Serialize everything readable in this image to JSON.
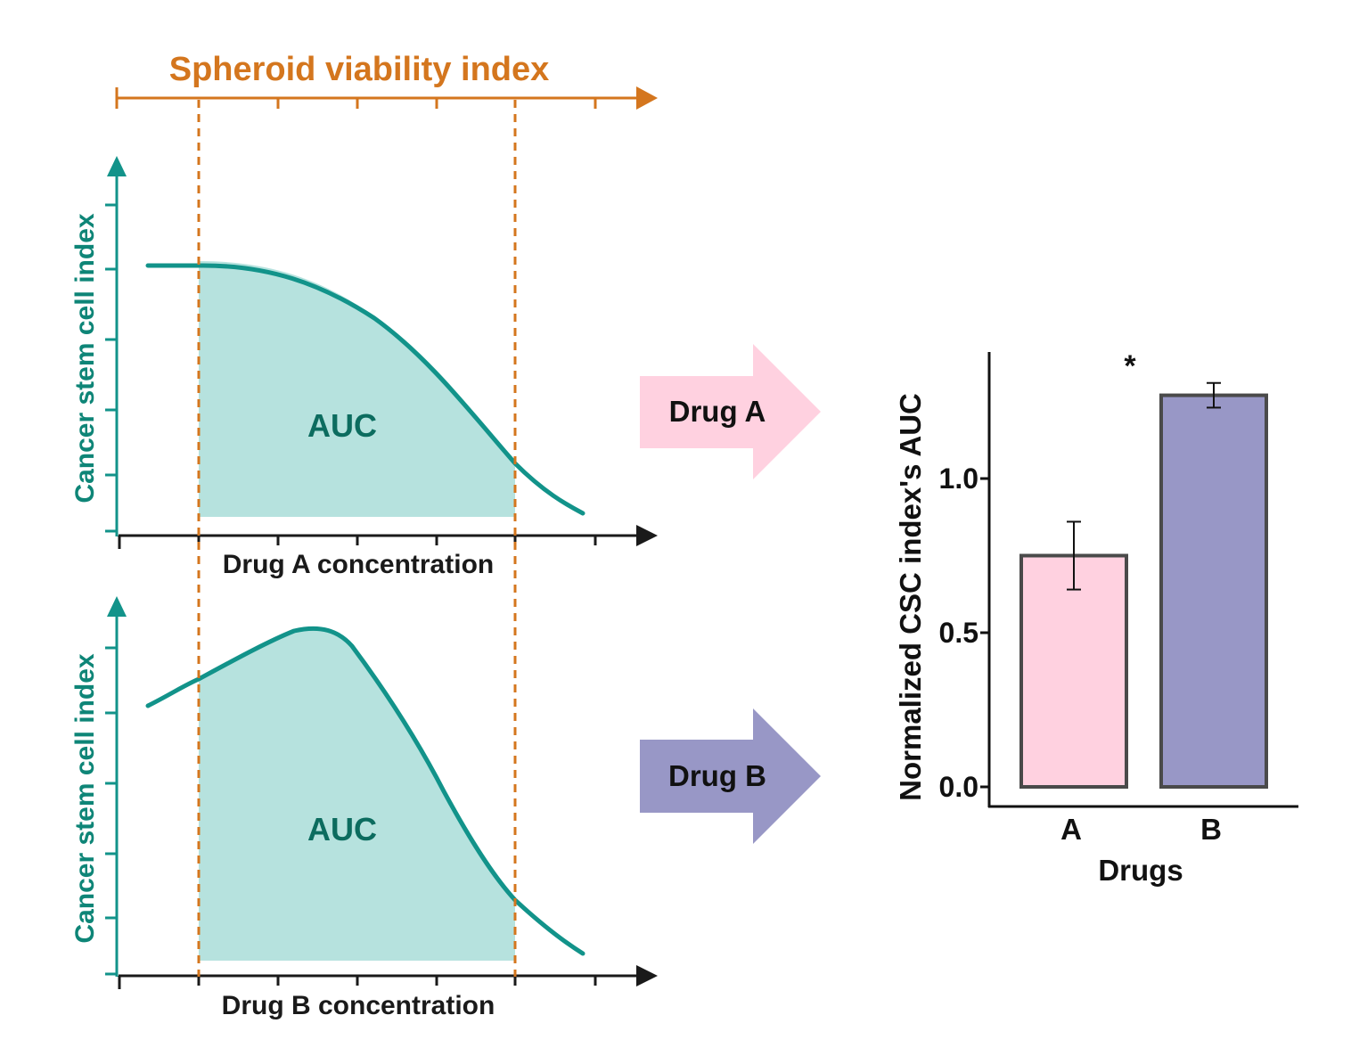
{
  "top_axis": {
    "title": "Spheroid viability index",
    "color": "#D4761E"
  },
  "panel_a": {
    "y_label": "Cancer stem cell index",
    "x_label": "Drug A concentration",
    "area_label": "AUC"
  },
  "panel_b": {
    "y_label": "Cancer stem cell index",
    "x_label": "Drug B concentration",
    "area_label": "AUC"
  },
  "arrow_a": {
    "label": "Drug A",
    "color": "#FFD1E0"
  },
  "arrow_b": {
    "label": "Drug B",
    "color": "#9897C6"
  },
  "colors": {
    "curve": "#12938A",
    "fill": "#B6E2DE",
    "axis_label": "#0E8577",
    "area_label": "#0C6C5F",
    "axis": "#1a1a1a"
  },
  "chart_data": {
    "type": "bar",
    "categories": [
      "A",
      "B"
    ],
    "values": [
      0.75,
      1.27
    ],
    "errors": [
      0.11,
      0.04
    ],
    "colors": [
      "#FFD1E0",
      "#9897C6"
    ],
    "ylabel": "Normalized CSC index's AUC",
    "xlabel": "Drugs",
    "yticks": [
      "0.0",
      "0.5",
      "1.0"
    ],
    "ylim": [
      0,
      1.41
    ],
    "annotation": "*"
  }
}
